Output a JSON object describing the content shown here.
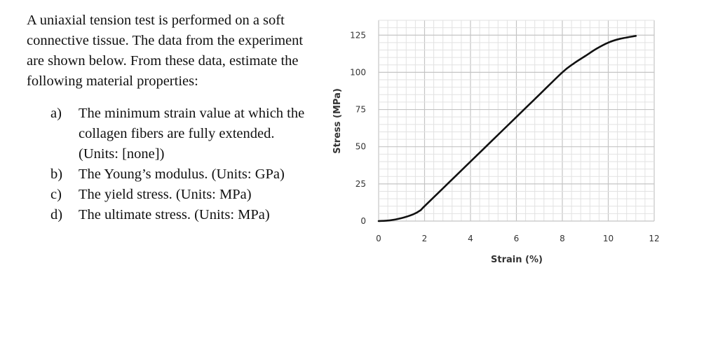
{
  "question": {
    "intro": "A uniaxial tension test is performed on a soft connective tissue. The data from the experiment are shown below. From these data, estimate the following material properties:",
    "items": [
      {
        "label": "a)",
        "text": "The minimum strain value at which the collagen fibers are fully extended. (Units: [none])"
      },
      {
        "label": "b)",
        "text": "The Young’s modulus. (Units: GPa)"
      },
      {
        "label": "c)",
        "text": "The yield stress. (Units: MPa)"
      },
      {
        "label": "d)",
        "text": "The ultimate stress. (Units: MPa)"
      }
    ]
  },
  "chart_data": {
    "type": "line",
    "xlabel": "Strain (%)",
    "ylabel": "Stress (MPa)",
    "xlim": [
      0,
      12
    ],
    "ylim": [
      0,
      135
    ],
    "xticks": [
      "0",
      "2",
      "4",
      "6",
      "8",
      "10",
      "12"
    ],
    "yticks": [
      "0",
      "25",
      "50",
      "75",
      "100",
      "125"
    ],
    "grid": true,
    "line_color": "#111111",
    "series": [
      {
        "x": [
          0,
          0.5,
          1,
          1.5,
          1.8,
          2,
          3,
          4,
          5,
          6,
          7,
          8,
          8.5,
          9,
          9.5,
          10,
          10.5,
          11.2
        ],
        "y": [
          0,
          0.5,
          2,
          4.5,
          7,
          10,
          25,
          40,
          55,
          70,
          85,
          100,
          106,
          111,
          116,
          120,
          122.5,
          124.5
        ]
      }
    ]
  }
}
